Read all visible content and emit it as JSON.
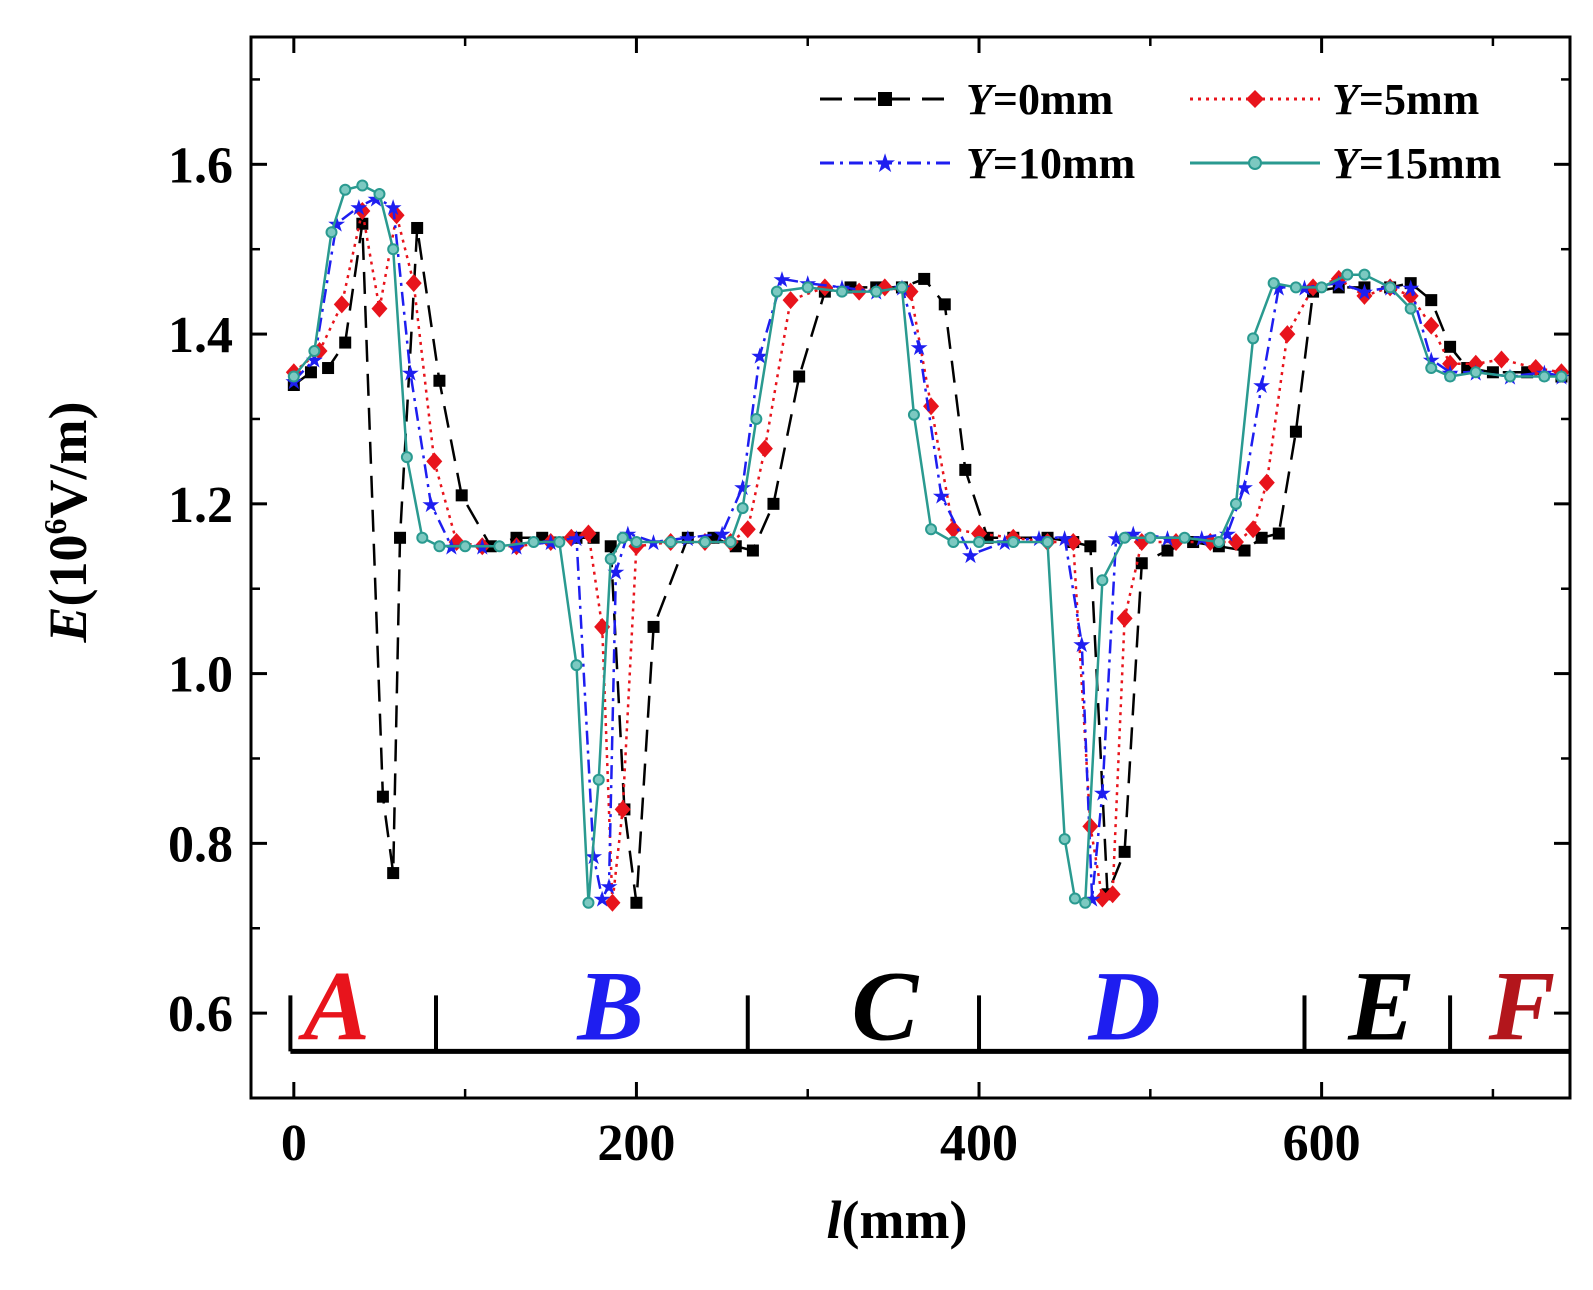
{
  "chart_data": {
    "type": "line",
    "title": "",
    "xlabel_var": "l",
    "xlabel_unit": "(mm)",
    "ylabel_var": "E",
    "ylabel_pre": "(10",
    "ylabel_exp": "6",
    "ylabel_post": "V/m)",
    "xlim": [
      -25,
      745
    ],
    "ylim": [
      0.5,
      1.75
    ],
    "x_ticks": [
      "0",
      "200",
      "400",
      "600"
    ],
    "y_ticks": [
      "0.6",
      "0.8",
      "1.0",
      "1.2",
      "1.4",
      "1.6"
    ],
    "legend": [
      {
        "var": "Y",
        "text": "=0mm",
        "color": "#000000"
      },
      {
        "var": "Y",
        "text": "=5mm",
        "color": "#e8141c"
      },
      {
        "var": "Y",
        "text": "=10mm",
        "color": "#1e1ef0"
      },
      {
        "var": "Y",
        "text": "=15mm",
        "color": "#2a9a90"
      }
    ],
    "series": [
      {
        "name": "Y=0mm",
        "color": "#000000",
        "dash": "22,12",
        "marker": "square",
        "x": [
          0,
          10,
          20,
          30,
          40,
          52,
          58,
          62,
          72,
          85,
          98,
          115,
          130,
          145,
          165,
          175,
          185,
          193,
          200,
          210,
          230,
          245,
          258,
          268,
          280,
          295,
          310,
          325,
          340,
          355,
          368,
          380,
          392,
          405,
          420,
          440,
          455,
          465,
          475,
          485,
          495,
          510,
          525,
          540,
          555,
          565,
          575,
          585,
          595,
          610,
          625,
          640,
          652,
          664,
          675,
          685,
          700,
          720,
          740
        ],
        "y": [
          1.34,
          1.355,
          1.36,
          1.39,
          1.53,
          0.855,
          0.765,
          1.16,
          1.525,
          1.345,
          1.21,
          1.15,
          1.16,
          1.16,
          1.16,
          1.16,
          1.15,
          0.84,
          0.73,
          1.055,
          1.16,
          1.16,
          1.15,
          1.145,
          1.2,
          1.35,
          1.45,
          1.455,
          1.455,
          1.455,
          1.465,
          1.435,
          1.24,
          1.16,
          1.16,
          1.16,
          1.155,
          1.15,
          0.74,
          0.79,
          1.13,
          1.145,
          1.155,
          1.15,
          1.145,
          1.16,
          1.165,
          1.285,
          1.45,
          1.455,
          1.455,
          1.455,
          1.46,
          1.44,
          1.385,
          1.36,
          1.355,
          1.355,
          1.35
        ]
      },
      {
        "name": "Y=5mm",
        "color": "#e8141c",
        "dash": "3,5",
        "marker": "diamond",
        "x": [
          0,
          15,
          28,
          40,
          50,
          60,
          70,
          82,
          95,
          110,
          130,
          150,
          162,
          172,
          180,
          186,
          192,
          200,
          220,
          240,
          255,
          265,
          275,
          290,
          310,
          330,
          345,
          360,
          372,
          385,
          400,
          420,
          440,
          455,
          465,
          472,
          478,
          485,
          495,
          515,
          535,
          550,
          560,
          568,
          580,
          595,
          610,
          625,
          640,
          652,
          664,
          675,
          690,
          705,
          725,
          740
        ],
        "y": [
          1.355,
          1.38,
          1.435,
          1.545,
          1.43,
          1.54,
          1.46,
          1.25,
          1.155,
          1.15,
          1.15,
          1.155,
          1.16,
          1.165,
          1.055,
          0.73,
          0.84,
          1.15,
          1.155,
          1.155,
          1.155,
          1.17,
          1.265,
          1.44,
          1.455,
          1.45,
          1.455,
          1.45,
          1.315,
          1.17,
          1.165,
          1.16,
          1.155,
          1.155,
          0.82,
          0.735,
          0.74,
          1.065,
          1.155,
          1.155,
          1.155,
          1.155,
          1.17,
          1.225,
          1.4,
          1.455,
          1.465,
          1.445,
          1.455,
          1.445,
          1.41,
          1.365,
          1.365,
          1.37,
          1.36,
          1.355
        ]
      },
      {
        "name": "Y=10mm",
        "color": "#1e1ef0",
        "dash": "14,6,3,6",
        "marker": "star",
        "x": [
          0,
          12,
          25,
          38,
          48,
          58,
          68,
          80,
          92,
          110,
          130,
          150,
          165,
          175,
          180,
          184,
          188,
          195,
          210,
          230,
          250,
          262,
          272,
          285,
          300,
          320,
          340,
          355,
          365,
          378,
          395,
          415,
          435,
          450,
          460,
          466,
          472,
          480,
          490,
          510,
          530,
          545,
          555,
          565,
          575,
          590,
          610,
          625,
          640,
          652,
          664,
          675,
          690,
          710,
          730,
          740
        ],
        "y": [
          1.345,
          1.37,
          1.53,
          1.55,
          1.56,
          1.55,
          1.355,
          1.2,
          1.15,
          1.15,
          1.15,
          1.155,
          1.16,
          0.785,
          0.735,
          0.75,
          1.12,
          1.165,
          1.155,
          1.16,
          1.165,
          1.22,
          1.375,
          1.465,
          1.46,
          1.455,
          1.45,
          1.455,
          1.385,
          1.21,
          1.14,
          1.155,
          1.16,
          1.16,
          1.035,
          0.735,
          0.86,
          1.16,
          1.165,
          1.16,
          1.16,
          1.165,
          1.22,
          1.34,
          1.455,
          1.455,
          1.46,
          1.45,
          1.455,
          1.455,
          1.37,
          1.355,
          1.355,
          1.35,
          1.355,
          1.35
        ]
      },
      {
        "name": "Y=15mm",
        "color": "#2a9a90",
        "dash": "",
        "marker": "circle",
        "x": [
          0,
          12,
          22,
          30,
          40,
          50,
          58,
          66,
          75,
          85,
          100,
          120,
          140,
          155,
          165,
          172,
          178,
          185,
          192,
          200,
          220,
          240,
          255,
          262,
          270,
          282,
          300,
          320,
          340,
          355,
          362,
          372,
          385,
          400,
          420,
          440,
          450,
          456,
          462,
          472,
          485,
          500,
          520,
          540,
          550,
          560,
          572,
          585,
          600,
          615,
          625,
          640,
          652,
          664,
          675,
          690,
          710,
          730,
          740
        ],
        "y": [
          1.35,
          1.38,
          1.52,
          1.57,
          1.575,
          1.565,
          1.5,
          1.255,
          1.16,
          1.15,
          1.15,
          1.15,
          1.155,
          1.155,
          1.01,
          0.73,
          0.875,
          1.135,
          1.16,
          1.155,
          1.155,
          1.155,
          1.155,
          1.195,
          1.3,
          1.45,
          1.455,
          1.45,
          1.45,
          1.455,
          1.305,
          1.17,
          1.155,
          1.155,
          1.155,
          1.155,
          0.805,
          0.735,
          0.73,
          1.11,
          1.16,
          1.16,
          1.16,
          1.155,
          1.2,
          1.395,
          1.46,
          1.455,
          1.455,
          1.47,
          1.47,
          1.455,
          1.43,
          1.36,
          1.35,
          1.355,
          1.35,
          1.35,
          1.35
        ]
      }
    ],
    "regions": [
      {
        "label": "A",
        "color": "#e8141c",
        "x": 25
      },
      {
        "label": "B",
        "color": "#1e1ef0",
        "x": 185
      },
      {
        "label": "C",
        "color": "#000000",
        "x": 345
      },
      {
        "label": "D",
        "color": "#1e1ef0",
        "x": 485
      },
      {
        "label": "E",
        "color": "#000000",
        "x": 635
      },
      {
        "label": "F",
        "color": "#b3161c",
        "x": 717
      }
    ],
    "region_boundaries": [
      -2,
      83,
      265,
      400,
      590,
      675
    ],
    "region_line_y": 0.555
  }
}
